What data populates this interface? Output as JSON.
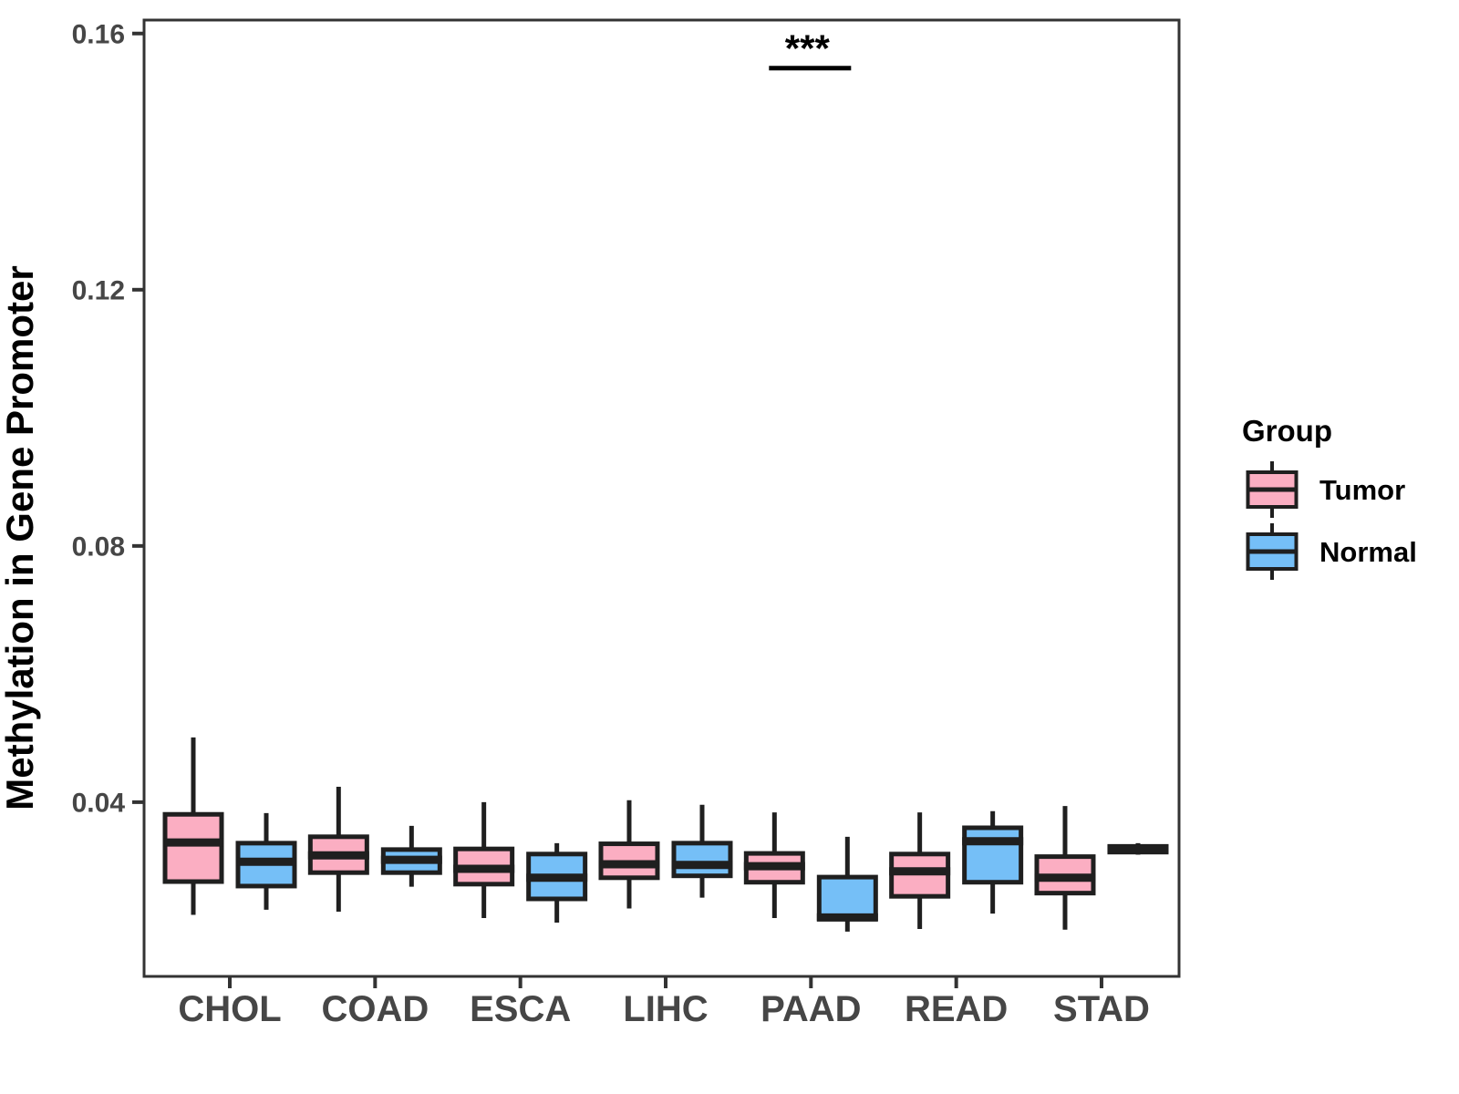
{
  "chart_data": {
    "type": "box",
    "title": "",
    "xlabel": "",
    "ylabel": "Methylation in Gene Promoter",
    "categories": [
      "CHOL",
      "COAD",
      "ESCA",
      "LIHC",
      "PAAD",
      "READ",
      "STAD"
    ],
    "yticks": [
      0.04,
      0.08,
      0.12,
      0.16
    ],
    "ylim": [
      0.0128,
      0.1621
    ],
    "grid": false,
    "panel_background": "#FFFFFF",
    "legend": {
      "title": "Group",
      "position": "right",
      "entries": [
        {
          "label": "Tumor",
          "color": "#FBAEC2"
        },
        {
          "label": "Normal",
          "color": "#75BFF7"
        }
      ]
    },
    "series": [
      {
        "name": "Tumor",
        "fill": "#FBAEC2",
        "boxes": [
          {
            "category": "CHOL",
            "low": 0.0224,
            "q1": 0.0276,
            "median": 0.0337,
            "q3": 0.0381,
            "high": 0.0501
          },
          {
            "category": "COAD",
            "low": 0.0229,
            "q1": 0.029,
            "median": 0.0317,
            "q3": 0.0346,
            "high": 0.0424
          },
          {
            "category": "ESCA",
            "low": 0.0219,
            "q1": 0.0272,
            "median": 0.0296,
            "q3": 0.0327,
            "high": 0.04
          },
          {
            "category": "LIHC",
            "low": 0.0234,
            "q1": 0.0282,
            "median": 0.0303,
            "q3": 0.0335,
            "high": 0.0403
          },
          {
            "category": "PAAD",
            "low": 0.0219,
            "q1": 0.0275,
            "median": 0.03,
            "q3": 0.032,
            "high": 0.0384
          },
          {
            "category": "READ",
            "low": 0.0202,
            "q1": 0.0253,
            "median": 0.0292,
            "q3": 0.0319,
            "high": 0.0384
          },
          {
            "category": "STAD",
            "low": 0.0201,
            "q1": 0.0258,
            "median": 0.0282,
            "q3": 0.0315,
            "high": 0.0394
          }
        ]
      },
      {
        "name": "Normal",
        "fill": "#75BFF7",
        "boxes": [
          {
            "category": "CHOL",
            "low": 0.0232,
            "q1": 0.0269,
            "median": 0.0307,
            "q3": 0.0336,
            "high": 0.0383
          },
          {
            "category": "COAD",
            "low": 0.0268,
            "q1": 0.029,
            "median": 0.031,
            "q3": 0.0326,
            "high": 0.0363
          },
          {
            "category": "ESCA",
            "low": 0.0212,
            "q1": 0.0249,
            "median": 0.0282,
            "q3": 0.0319,
            "high": 0.0336
          },
          {
            "category": "LIHC",
            "low": 0.0251,
            "q1": 0.0285,
            "median": 0.0302,
            "q3": 0.0336,
            "high": 0.0396
          },
          {
            "category": "PAAD",
            "low": 0.0198,
            "q1": 0.0218,
            "median": 0.022,
            "q3": 0.0283,
            "high": 0.0346
          },
          {
            "category": "READ",
            "low": 0.0226,
            "q1": 0.0275,
            "median": 0.0339,
            "q3": 0.036,
            "high": 0.0386
          },
          {
            "category": "STAD",
            "low": 0.0318,
            "q1": 0.0322,
            "median": 0.0327,
            "q3": 0.0331,
            "high": 0.0336
          }
        ]
      }
    ],
    "significance": {
      "label": "***",
      "category": "PAAD",
      "compares": [
        "Tumor",
        "Normal"
      ],
      "line_y": 0.1546
    },
    "style_colors": {
      "box_stroke": "#1F1F1F",
      "median": "#1F1F1F",
      "panel_border": "#333333",
      "tick_mark": "#333333",
      "tick_label": "#464646",
      "axis_title": "#000000",
      "annotation": "#000000"
    }
  }
}
